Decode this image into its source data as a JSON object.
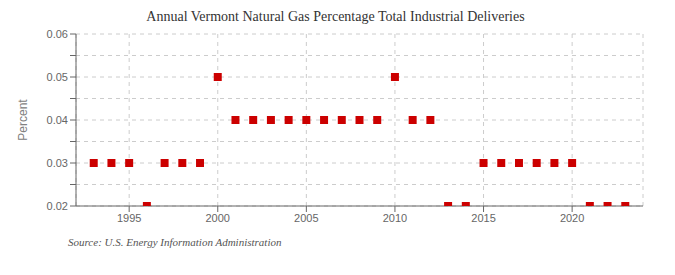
{
  "chart_data": {
    "type": "scatter",
    "title": "Annual Vermont Natural Gas Percentage Total Industrial Deliveries",
    "y_label": "Percent",
    "source": "Source: U.S. Energy Information Administration",
    "x": [
      1993,
      1994,
      1995,
      1996,
      1997,
      1998,
      1999,
      2000,
      2001,
      2002,
      2003,
      2004,
      2005,
      2006,
      2007,
      2008,
      2009,
      2010,
      2011,
      2012,
      2013,
      2014,
      2015,
      2016,
      2017,
      2018,
      2019,
      2020,
      2021,
      2022,
      2023
    ],
    "values": [
      0.03,
      0.03,
      0.03,
      0.02,
      0.03,
      0.03,
      0.03,
      0.05,
      0.04,
      0.04,
      0.04,
      0.04,
      0.04,
      0.04,
      0.04,
      0.04,
      0.04,
      0.05,
      0.04,
      0.04,
      0.02,
      0.02,
      0.03,
      0.03,
      0.03,
      0.03,
      0.03,
      0.03,
      0.02,
      0.02,
      0.02
    ],
    "color": "#cc0000",
    "marker": "square",
    "xlim": [
      1992,
      2024
    ],
    "xticks": [
      1995,
      2000,
      2005,
      2010,
      2015,
      2020
    ],
    "ylim": [
      0.02,
      0.06
    ],
    "yticks": [
      0.02,
      {
        "value": 0.025,
        "label": ""
      },
      0.03,
      {
        "value": 0.035,
        "label": ""
      },
      0.04,
      {
        "value": 0.045,
        "label": ""
      },
      0.05,
      {
        "value": 0.055,
        "label": ""
      },
      0.06
    ],
    "grid": true
  }
}
